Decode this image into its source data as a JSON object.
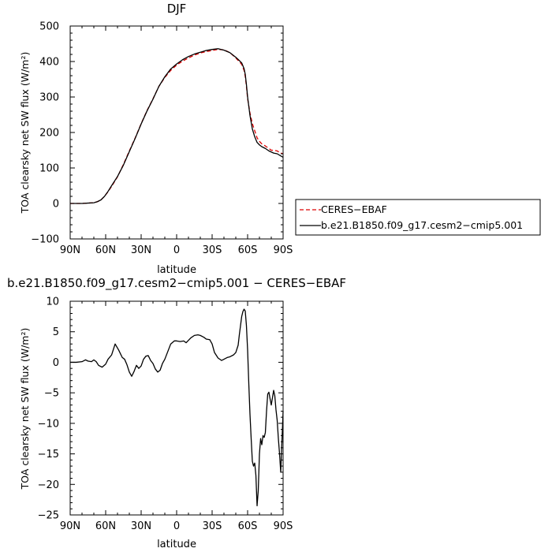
{
  "chart_data": [
    {
      "type": "line",
      "title": "DJF",
      "xlabel": "latitude",
      "ylabel": "TOA clearsky net SW flux (W/m²)",
      "x_ticks": [
        -90,
        -60,
        -30,
        0,
        30,
        60,
        90
      ],
      "x_tick_labels": [
        "90N",
        "60N",
        "30N",
        "0",
        "30S",
        "60S",
        "90S"
      ],
      "xlim": [
        -90,
        90
      ],
      "ylim": [
        -100,
        500
      ],
      "y_ticks": [
        -100,
        0,
        100,
        200,
        300,
        400,
        500
      ],
      "y_tick_labels": [
        "−100",
        "0",
        "100",
        "200",
        "300",
        "400",
        "500"
      ],
      "grid": false,
      "legend_placement": "right, outside",
      "series": [
        {
          "name": "CERES−EBAF",
          "color": "#dd0000",
          "style": "dashed",
          "x": [
            -90,
            -80,
            -75,
            -70,
            -67,
            -64,
            -61,
            -58,
            -55,
            -50,
            -45,
            -40,
            -35,
            -30,
            -25,
            -20,
            -15,
            -10,
            -5,
            0,
            5,
            10,
            15,
            20,
            25,
            30,
            35,
            40,
            45,
            50,
            52,
            55,
            57,
            58,
            59,
            60,
            62,
            64,
            66,
            68,
            70,
            72,
            75,
            78,
            80,
            82,
            85,
            88,
            90
          ],
          "y": [
            0,
            0,
            1,
            2,
            5,
            10,
            20,
            33,
            48,
            75,
            110,
            148,
            185,
            225,
            262,
            295,
            330,
            355,
            375,
            390,
            401,
            410,
            418,
            424,
            428,
            431,
            434,
            433,
            425,
            410,
            403,
            392,
            375,
            358,
            330,
            295,
            255,
            225,
            205,
            185,
            175,
            168,
            162,
            155,
            150,
            150,
            148,
            142,
            140
          ]
        },
        {
          "name": "b.e21.B1850.f09_g17.cesm2−cmip5.001",
          "color": "#000000",
          "style": "solid",
          "x": [
            -90,
            -80,
            -75,
            -70,
            -67,
            -64,
            -61,
            -58,
            -55,
            -50,
            -45,
            -40,
            -35,
            -30,
            -25,
            -20,
            -15,
            -10,
            -5,
            0,
            5,
            10,
            15,
            20,
            25,
            30,
            35,
            40,
            45,
            50,
            52,
            55,
            57,
            58,
            59,
            60,
            62,
            64,
            66,
            68,
            70,
            72,
            75,
            78,
            80,
            82,
            85,
            88,
            90
          ],
          "y": [
            0,
            0,
            1,
            2,
            5,
            10,
            20,
            34,
            50,
            76,
            108,
            146,
            184,
            224,
            261,
            294,
            330,
            357,
            379,
            393,
            405,
            414,
            421,
            426,
            431,
            434,
            436,
            432,
            425,
            412,
            406,
            396,
            380,
            364,
            335,
            300,
            248,
            210,
            188,
            172,
            165,
            160,
            155,
            148,
            145,
            142,
            140,
            134,
            130
          ]
        }
      ]
    },
    {
      "type": "line",
      "title": "b.e21.B1850.f09_g17.cesm2−cmip5.001 − CERES−EBAF",
      "xlabel": "latitude",
      "ylabel": "TOA clearsky net SW flux (W/m²)",
      "x_ticks": [
        -90,
        -60,
        -30,
        0,
        30,
        60,
        90
      ],
      "x_tick_labels": [
        "90N",
        "60N",
        "30N",
        "0",
        "30S",
        "60S",
        "90S"
      ],
      "xlim": [
        -90,
        90
      ],
      "ylim": [
        -25,
        10
      ],
      "y_ticks": [
        -25,
        -20,
        -15,
        -10,
        -5,
        0,
        5,
        10
      ],
      "y_tick_labels": [
        "−25",
        "−20",
        "−15",
        "−10",
        "−5",
        "0",
        "5",
        "10"
      ],
      "grid": false,
      "series": [
        {
          "name": "",
          "color": "#000000",
          "style": "solid",
          "x": [
            -90,
            -85,
            -80,
            -77,
            -75,
            -72,
            -70,
            -68,
            -66,
            -63,
            -60,
            -58,
            -55,
            -52,
            -49,
            -46,
            -44,
            -42,
            -40,
            -38,
            -36,
            -34,
            -32,
            -30,
            -28,
            -26,
            -24,
            -22,
            -20,
            -18,
            -16,
            -14,
            -12,
            -10,
            -7,
            -5,
            -2,
            0,
            3,
            6,
            8,
            10,
            12,
            15,
            18,
            20,
            23,
            25,
            28,
            30,
            32,
            35,
            38,
            40,
            43,
            45,
            48,
            50,
            52,
            53,
            54,
            55,
            56,
            57,
            58,
            59,
            60,
            61,
            62,
            63,
            64,
            65,
            66,
            67,
            68,
            69,
            70,
            71,
            72,
            73,
            74,
            75,
            76,
            77,
            78,
            79,
            80,
            81,
            82,
            83,
            84,
            85,
            86,
            87,
            88,
            89,
            90
          ],
          "y": [
            0,
            0,
            0.1,
            0.4,
            0.2,
            0.1,
            0.4,
            0.1,
            -0.5,
            -0.8,
            -0.3,
            0.5,
            1.2,
            3.0,
            2.0,
            0.8,
            0.5,
            -0.4,
            -1.6,
            -2.3,
            -1.5,
            -0.5,
            -1.0,
            -0.6,
            0.5,
            1.0,
            1.1,
            0.3,
            -0.2,
            -1.1,
            -1.6,
            -1.3,
            -0.2,
            0.5,
            2.0,
            3.0,
            3.5,
            3.5,
            3.4,
            3.5,
            3.2,
            3.6,
            4.0,
            4.4,
            4.5,
            4.4,
            4.1,
            3.8,
            3.7,
            3.0,
            1.6,
            0.7,
            0.3,
            0.5,
            0.8,
            0.9,
            1.2,
            1.6,
            2.8,
            4.5,
            6.0,
            7.5,
            8.3,
            8.7,
            8.4,
            6.0,
            2.0,
            -3.5,
            -8.5,
            -12.5,
            -16.2,
            -17.0,
            -16.5,
            -18.5,
            -23.5,
            -21.0,
            -15.0,
            -12.5,
            -13.5,
            -12.0,
            -12.3,
            -11.5,
            -8.0,
            -5.2,
            -4.9,
            -6.0,
            -7.0,
            -5.8,
            -4.6,
            -5.5,
            -7.8,
            -9.5,
            -12.5,
            -15.0,
            -18.0,
            -13.0,
            -8.0
          ]
        }
      ]
    }
  ]
}
